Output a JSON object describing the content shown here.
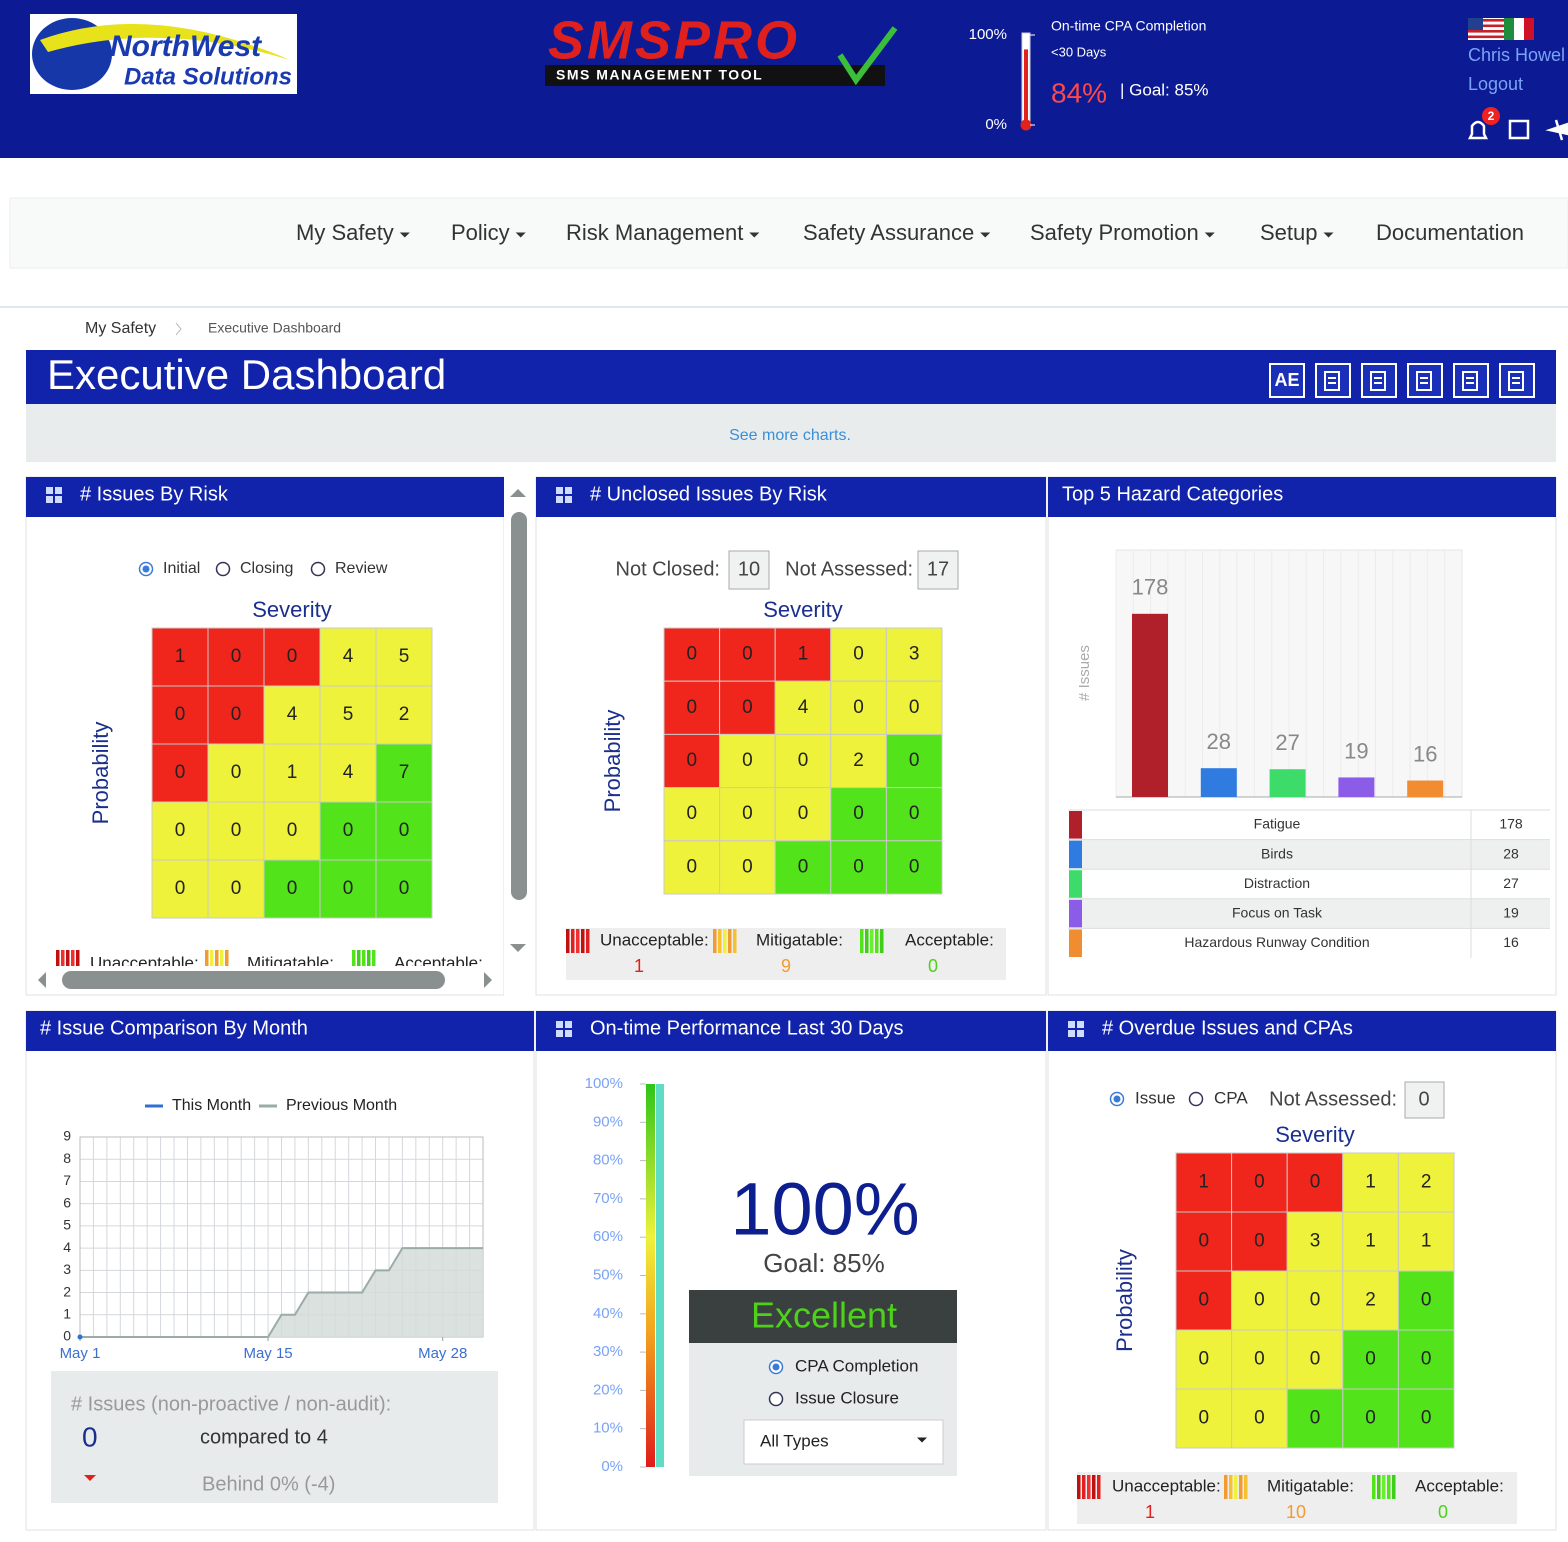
{
  "header": {
    "logo": [
      "NorthWest",
      "Data Solutions"
    ],
    "product": {
      "name": "SMSPRO",
      "tagline": "SMS MANAGEMENT TOOL"
    },
    "gauge": {
      "title": "On-time CPA Completion",
      "subtitle": "<30 Days",
      "ylim": [
        0,
        100
      ],
      "yticks": [
        {
          "value": 0,
          "label": "0%"
        },
        {
          "value": 100,
          "label": "100%"
        }
      ],
      "value": 84,
      "value_label": "84%",
      "goal": "| Goal: 85%"
    },
    "user": "Chris Howel",
    "logout": "Logout",
    "notifications": 2
  },
  "nav": [
    "My Safety",
    "Policy",
    "Risk Management",
    "Safety Assurance",
    "Safety Promotion",
    "Setup",
    "Documentation"
  ],
  "breadcrumb": [
    "My Safety",
    "Executive Dashboard"
  ],
  "title": "Executive Dashboard",
  "toolbar": "AE",
  "more_link": "See more charts.",
  "risk_colors": [
    "#f0261c",
    "#eef23a",
    "#52e31b"
  ],
  "panels": {
    "issues_by_risk": {
      "title": "# Issues By Risk",
      "options": [
        "Initial",
        "Closing",
        "Review"
      ],
      "selected": 0,
      "x_label": "Severity",
      "y_label": "Probability",
      "matrix": [
        [
          1,
          0,
          0,
          4,
          5
        ],
        [
          0,
          0,
          4,
          5,
          2
        ],
        [
          0,
          0,
          1,
          4,
          7
        ],
        [
          0,
          0,
          0,
          0,
          0
        ],
        [
          0,
          0,
          0,
          0,
          0
        ]
      ],
      "legend": [
        "Unacceptable:",
        "Mitigatable:",
        "Acceptable:"
      ]
    },
    "unclosed": {
      "title": "# Unclosed Issues By Risk",
      "counters": [
        {
          "label": "Not Closed:",
          "value": 10
        },
        {
          "label": "Not Assessed:",
          "value": 17
        }
      ],
      "x_label": "Severity",
      "y_label": "Probability",
      "matrix": [
        [
          0,
          0,
          1,
          0,
          3
        ],
        [
          0,
          0,
          4,
          0,
          0
        ],
        [
          0,
          0,
          0,
          2,
          0
        ],
        [
          0,
          0,
          0,
          0,
          0
        ],
        [
          0,
          0,
          0,
          0,
          0
        ]
      ],
      "legend": [
        "Unacceptable:",
        "Mitigatable:",
        "Acceptable:"
      ],
      "legend_counts": [
        1,
        9,
        0
      ]
    },
    "hazards": {
      "title": "Top 5 Hazard Categories",
      "chart": {
        "type": "bar",
        "y_label": "# Issues",
        "categories": [
          "Fatigue",
          "Birds",
          "Distraction",
          "Focus on Task",
          "Hazardous Runway Condition"
        ],
        "values": [
          178,
          28,
          27,
          19,
          16
        ],
        "colors": [
          "#b0202a",
          "#2f7be0",
          "#3ddc6a",
          "#8a5ce8",
          "#f28c30"
        ],
        "ylim": [
          0,
          240
        ]
      }
    },
    "comparison": {
      "title": "# Issue Comparison By Month",
      "chart": {
        "type": "line",
        "x": [
          1,
          2,
          3,
          4,
          5,
          6,
          7,
          8,
          9,
          10,
          11,
          12,
          13,
          14,
          15,
          16,
          17,
          18,
          19,
          20,
          21,
          22,
          23,
          24,
          25,
          26,
          27,
          28,
          29,
          30,
          31
        ],
        "xlim": [
          1,
          31
        ],
        "xticks": [
          {
            "value": 1,
            "label": "May 1"
          },
          {
            "value": 15,
            "label": "May 15"
          },
          {
            "value": 28,
            "label": "May 28"
          }
        ],
        "ylim": [
          0,
          9
        ],
        "yticks": [
          0,
          1,
          2,
          3,
          4,
          5,
          6,
          7,
          8,
          9
        ],
        "grid": true,
        "series": [
          {
            "name": "This Month",
            "color": "#2f6fd6",
            "values": [
              0,
              null,
              null,
              null,
              null,
              null,
              null,
              null,
              null,
              null,
              null,
              null,
              null,
              null,
              null,
              null,
              null,
              null,
              null,
              null,
              null,
              null,
              null,
              null,
              null,
              null,
              null,
              null,
              null,
              null,
              null
            ]
          },
          {
            "name": "Previous Month",
            "color": "#9aaba8",
            "area": "#d3dcd9",
            "values": [
              0,
              0,
              0,
              0,
              0,
              0,
              0,
              0,
              0,
              0,
              0,
              0,
              0,
              0,
              0,
              1,
              1,
              2,
              2,
              2,
              2,
              2,
              3,
              3,
              4,
              4,
              4,
              4,
              4,
              4,
              4
            ]
          }
        ]
      },
      "summary": {
        "label": "# Issues (non-proactive / non-audit):",
        "value": 0,
        "compare": "compared to 4",
        "status": "Behind 0% (-4)"
      }
    },
    "performance": {
      "title": "On-time Performance Last 30 Days",
      "chart": {
        "type": "gauge",
        "ylim": [
          0,
          100
        ],
        "yticks": [
          {
            "value": 0,
            "label": "0%"
          },
          {
            "value": 10,
            "label": "10%"
          },
          {
            "value": 20,
            "label": "20%"
          },
          {
            "value": 30,
            "label": "30%"
          },
          {
            "value": 40,
            "label": "40%"
          },
          {
            "value": 50,
            "label": "50%"
          },
          {
            "value": 60,
            "label": "60%"
          },
          {
            "value": 70,
            "label": "70%"
          },
          {
            "value": 80,
            "label": "80%"
          },
          {
            "value": 90,
            "label": "90%"
          },
          {
            "value": 100,
            "label": "100%"
          }
        ],
        "value": 100,
        "value_label": "100%",
        "goal": "Goal: 85%",
        "rating": "Excellent"
      },
      "options": [
        "CPA Completion",
        "Issue Closure"
      ],
      "selected": 0,
      "filter": "All Types"
    },
    "overdue": {
      "title": "# Overdue Issues and CPAs",
      "options": [
        "Issue",
        "CPA"
      ],
      "selected": 0,
      "counters": [
        {
          "label": "Not Assessed:",
          "value": 0
        }
      ],
      "x_label": "Severity",
      "y_label": "Probability",
      "matrix": [
        [
          1,
          0,
          0,
          1,
          2
        ],
        [
          0,
          0,
          3,
          1,
          1
        ],
        [
          0,
          0,
          0,
          2,
          0
        ],
        [
          0,
          0,
          0,
          0,
          0
        ],
        [
          0,
          0,
          0,
          0,
          0
        ]
      ],
      "legend": [
        "Unacceptable:",
        "Mitigatable:",
        "Acceptable:"
      ],
      "legend_counts": [
        1,
        10,
        0
      ]
    }
  }
}
